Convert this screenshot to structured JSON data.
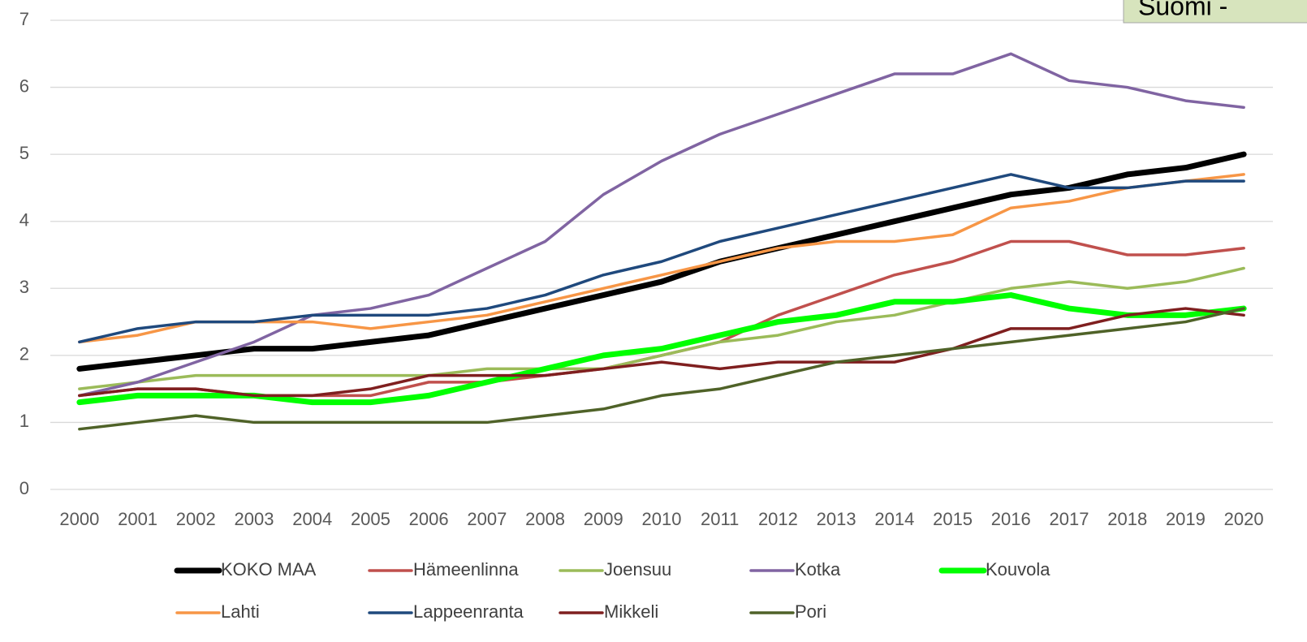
{
  "chart_data": {
    "type": "line",
    "annotation": "Suomi -",
    "categories": [
      "2000",
      "2001",
      "2002",
      "2003",
      "2004",
      "2005",
      "2006",
      "2007",
      "2008",
      "2009",
      "2010",
      "2011",
      "2012",
      "2013",
      "2014",
      "2015",
      "2016",
      "2017",
      "2018",
      "2019",
      "2020"
    ],
    "ylim": [
      0,
      7
    ],
    "yticks": [
      0,
      1,
      2,
      3,
      4,
      5,
      6,
      7
    ],
    "grid": true,
    "legend": "bottom",
    "series": [
      {
        "name": "KOKO MAA",
        "color": "#000000",
        "line_width": 7,
        "values": [
          1.8,
          1.9,
          2.0,
          2.1,
          2.1,
          2.2,
          2.3,
          2.5,
          2.7,
          2.9,
          3.1,
          3.4,
          3.6,
          3.8,
          4.0,
          4.2,
          4.4,
          4.5,
          4.7,
          4.8,
          5.0
        ]
      },
      {
        "name": "Hämeenlinna",
        "color": "#c0504d",
        "line_width": 3.5,
        "values": [
          1.4,
          1.5,
          1.5,
          1.4,
          1.4,
          1.4,
          1.6,
          1.6,
          1.7,
          1.8,
          2.0,
          2.2,
          2.6,
          2.9,
          3.2,
          3.4,
          3.7,
          3.7,
          3.5,
          3.5,
          3.6
        ]
      },
      {
        "name": "Joensuu",
        "color": "#9bbb59",
        "line_width": 3.5,
        "values": [
          1.5,
          1.6,
          1.7,
          1.7,
          1.7,
          1.7,
          1.7,
          1.8,
          1.8,
          1.8,
          2.0,
          2.2,
          2.3,
          2.5,
          2.6,
          2.8,
          3.0,
          3.1,
          3.0,
          3.1,
          3.3
        ]
      },
      {
        "name": "Kotka",
        "color": "#8064a2",
        "line_width": 3.5,
        "values": [
          1.4,
          1.6,
          1.9,
          2.2,
          2.6,
          2.7,
          2.9,
          3.3,
          3.7,
          4.4,
          4.9,
          5.3,
          5.6,
          5.9,
          6.2,
          6.2,
          6.5,
          6.1,
          6.0,
          5.8,
          5.7
        ]
      },
      {
        "name": "Kouvola",
        "color": "#00ff00",
        "line_width": 7,
        "values": [
          1.3,
          1.4,
          1.4,
          1.4,
          1.3,
          1.3,
          1.4,
          1.6,
          1.8,
          2.0,
          2.1,
          2.3,
          2.5,
          2.6,
          2.8,
          2.8,
          2.9,
          2.7,
          2.6,
          2.6,
          2.7
        ]
      },
      {
        "name": "Lahti",
        "color": "#f79646",
        "line_width": 3.5,
        "values": [
          2.2,
          2.3,
          2.5,
          2.5,
          2.5,
          2.4,
          2.5,
          2.6,
          2.8,
          3.0,
          3.2,
          3.4,
          3.6,
          3.7,
          3.7,
          3.8,
          4.2,
          4.3,
          4.5,
          4.6,
          4.7
        ]
      },
      {
        "name": "Lappeenranta",
        "color": "#1f497d",
        "line_width": 3.5,
        "values": [
          2.2,
          2.4,
          2.5,
          2.5,
          2.6,
          2.6,
          2.6,
          2.7,
          2.9,
          3.2,
          3.4,
          3.7,
          3.9,
          4.1,
          4.3,
          4.5,
          4.7,
          4.5,
          4.5,
          4.6,
          4.6
        ]
      },
      {
        "name": "Mikkeli",
        "color": "#7f1f1f",
        "line_width": 3.5,
        "values": [
          1.4,
          1.5,
          1.5,
          1.4,
          1.4,
          1.5,
          1.7,
          1.7,
          1.7,
          1.8,
          1.9,
          1.8,
          1.9,
          1.9,
          1.9,
          2.1,
          2.4,
          2.4,
          2.6,
          2.7,
          2.6
        ]
      },
      {
        "name": "Pori",
        "color": "#4f6228",
        "line_width": 3.5,
        "values": [
          0.9,
          1.0,
          1.1,
          1.0,
          1.0,
          1.0,
          1.0,
          1.0,
          1.1,
          1.2,
          1.4,
          1.5,
          1.7,
          1.9,
          2.0,
          2.1,
          2.2,
          2.3,
          2.4,
          2.5,
          2.7
        ]
      }
    ]
  }
}
